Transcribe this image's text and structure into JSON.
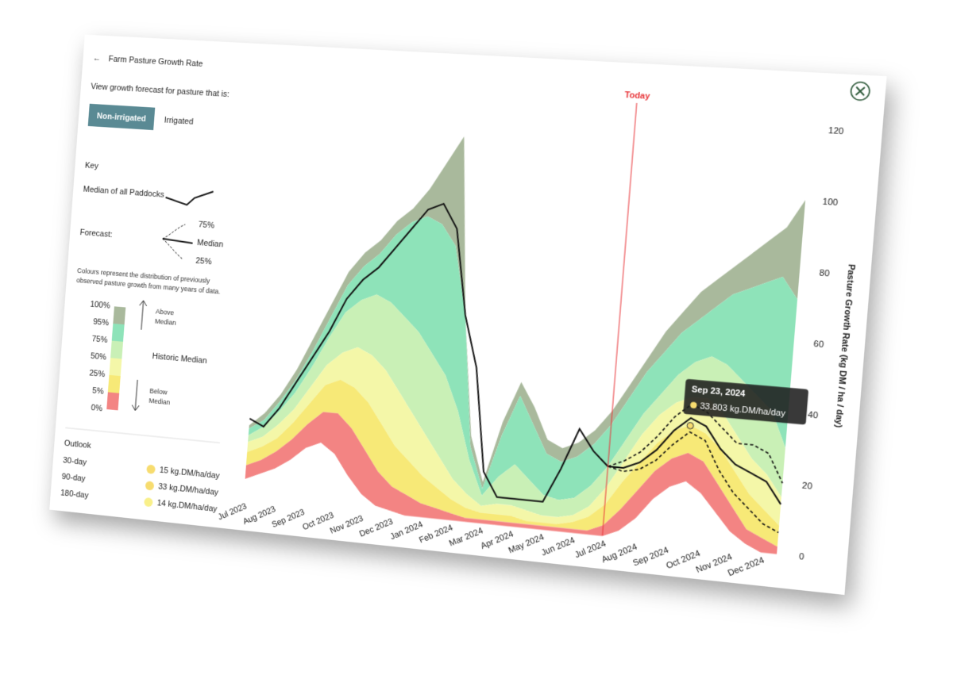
{
  "header": {
    "title": "Farm Pasture Growth Rate",
    "subtitle": "View growth forecast for pasture that is:",
    "toggle": [
      "Non-irrigated",
      "Irrigated"
    ]
  },
  "key": {
    "title": "Key",
    "median_label": "Median of all Paddocks",
    "forecast_label": "Forecast:",
    "forecast_items": [
      "75%",
      "Median",
      "25%"
    ],
    "description": "Colours represent the distribution of previously observed pasture growth from many years of data.",
    "above": "Above Median",
    "historic": "Historic Median",
    "below": "Below Median"
  },
  "outlook": {
    "title": "Outlook",
    "rows": [
      {
        "period": "30-day",
        "value": "15 kg.DM/ha/day",
        "color": "#f7dc6f"
      },
      {
        "period": "90-day",
        "value": "33 kg.DM/ha/day",
        "color": "#f7dc6f"
      },
      {
        "period": "180-day",
        "value": "14 kg.DM/ha/day",
        "color": "#f9f08a"
      }
    ]
  },
  "chart_data": {
    "type": "band-line",
    "y_label": "Pasture Growth Rate (kg DM / ha / day)",
    "categories": [
      "Jul 2023",
      null,
      "Aug 2023",
      null,
      "Sep 2023",
      null,
      "Oct 2023",
      null,
      "Nov 2023",
      null,
      "Dec 2023",
      null,
      "Jan 2024",
      null,
      "Feb 2024",
      null,
      "Mar 2024",
      null,
      "Apr 2024",
      null,
      "May 2024",
      null,
      "Jun 2024",
      null,
      "Jul 2024",
      null,
      "Aug 2024",
      null,
      "Sep 2024",
      null,
      "Oct 2024",
      null,
      "Nov 2024",
      null,
      "Dec 2024",
      null
    ],
    "ylim": [
      0,
      120
    ],
    "yticks": [
      0,
      20,
      40,
      60,
      80,
      100,
      120
    ],
    "series": [
      {
        "name": "100%",
        "color": "#a9b99c",
        "values": [
          22,
          26,
          32,
          40,
          50,
          60,
          70,
          76,
          80,
          86,
          90,
          96,
          104,
          112,
          60,
          25,
          12,
          30,
          42,
          35,
          26,
          24,
          26,
          30,
          36,
          44,
          52,
          60,
          66,
          72,
          76,
          80,
          84,
          88,
          92,
          100
        ]
      },
      {
        "name": "95%",
        "color": "#8ee3b9",
        "values": [
          21,
          24,
          30,
          37,
          46,
          56,
          66,
          72,
          76,
          82,
          86,
          88,
          86,
          80,
          60,
          22,
          10,
          26,
          38,
          30,
          22,
          20,
          22,
          26,
          32,
          40,
          48,
          54,
          60,
          64,
          68,
          72,
          74,
          76,
          78,
          72
        ]
      },
      {
        "name": "75%",
        "color": "#c9f0b6",
        "values": [
          19,
          22,
          27,
          33,
          41,
          50,
          58,
          62,
          64,
          62,
          58,
          54,
          48,
          42,
          32,
          18,
          8,
          14,
          18,
          14,
          10,
          9,
          10,
          14,
          20,
          28,
          36,
          42,
          48,
          52,
          54,
          52,
          48,
          44,
          40,
          30
        ]
      },
      {
        "name": "50%",
        "color": "#f4f7a8",
        "values": [
          17,
          19,
          23,
          28,
          35,
          42,
          46,
          48,
          46,
          42,
          36,
          30,
          24,
          18,
          12,
          8,
          5,
          6,
          6,
          5,
          4,
          4,
          5,
          8,
          14,
          22,
          30,
          36,
          40,
          42,
          42,
          38,
          32,
          26,
          22,
          16
        ]
      },
      {
        "name": "25%",
        "color": "#f7e977",
        "values": [
          14,
          16,
          19,
          24,
          30,
          36,
          38,
          36,
          32,
          26,
          20,
          16,
          12,
          9,
          6,
          4,
          3,
          3,
          3,
          2,
          2,
          2,
          3,
          5,
          9,
          16,
          22,
          28,
          32,
          34,
          32,
          28,
          22,
          16,
          12,
          8
        ]
      },
      {
        "name": "5%",
        "color": "#f38483",
        "values": [
          10,
          12,
          15,
          19,
          24,
          28,
          28,
          24,
          18,
          12,
          8,
          6,
          4,
          3,
          2,
          1,
          1,
          1,
          1,
          1,
          1,
          1,
          1,
          1,
          3,
          8,
          14,
          20,
          24,
          26,
          24,
          18,
          12,
          6,
          4,
          2
        ]
      },
      {
        "name": "0%",
        "values": [
          6,
          8,
          10,
          13,
          17,
          19,
          16,
          10,
          5,
          2,
          1,
          0,
          0,
          0,
          0,
          0,
          0,
          0,
          0,
          0,
          0,
          0,
          0,
          0,
          0,
          2,
          6,
          12,
          16,
          18,
          15,
          10,
          5,
          2,
          0,
          0
        ]
      }
    ],
    "lines": [
      {
        "values": [
          24,
          22,
          28,
          36,
          44,
          52,
          62,
          68,
          72,
          78,
          84,
          90,
          92,
          85,
          60,
          45,
          15,
          8,
          8,
          8,
          8,
          18,
          30,
          24,
          20,
          null,
          null,
          null,
          null,
          null,
          null,
          null,
          null,
          null,
          null,
          null
        ],
        "color": "#111111",
        "dash": false
      },
      {
        "values": [
          null,
          null,
          null,
          null,
          null,
          null,
          null,
          null,
          null,
          null,
          null,
          null,
          null,
          null,
          null,
          null,
          null,
          null,
          null,
          null,
          null,
          null,
          null,
          null,
          20,
          20,
          22,
          26,
          32,
          36,
          34,
          28,
          24,
          22,
          20,
          14
        ],
        "color": "#111111",
        "dash": false
      },
      {
        "values": [
          null,
          null,
          null,
          null,
          null,
          null,
          null,
          null,
          null,
          null,
          null,
          null,
          null,
          null,
          null,
          null,
          null,
          null,
          null,
          null,
          null,
          null,
          null,
          null,
          20,
          22,
          25,
          30,
          36,
          40,
          38,
          34,
          30,
          30,
          28,
          20
        ],
        "color": "#111111",
        "dash": true
      },
      {
        "values": [
          null,
          null,
          null,
          null,
          null,
          null,
          null,
          null,
          null,
          null,
          null,
          null,
          null,
          null,
          null,
          null,
          null,
          null,
          null,
          null,
          null,
          null,
          null,
          null,
          20,
          19,
          20,
          23,
          28,
          32,
          30,
          22,
          16,
          12,
          8,
          6
        ],
        "color": "#111111",
        "dash": true
      }
    ],
    "today": {
      "label": "Today",
      "x": 24,
      "color": "#e8363a"
    },
    "tooltip": {
      "title": "Sep 23, 2024",
      "value": 33.803,
      "label": "33.803 kg.DM/ha/day",
      "x": 29
    }
  }
}
